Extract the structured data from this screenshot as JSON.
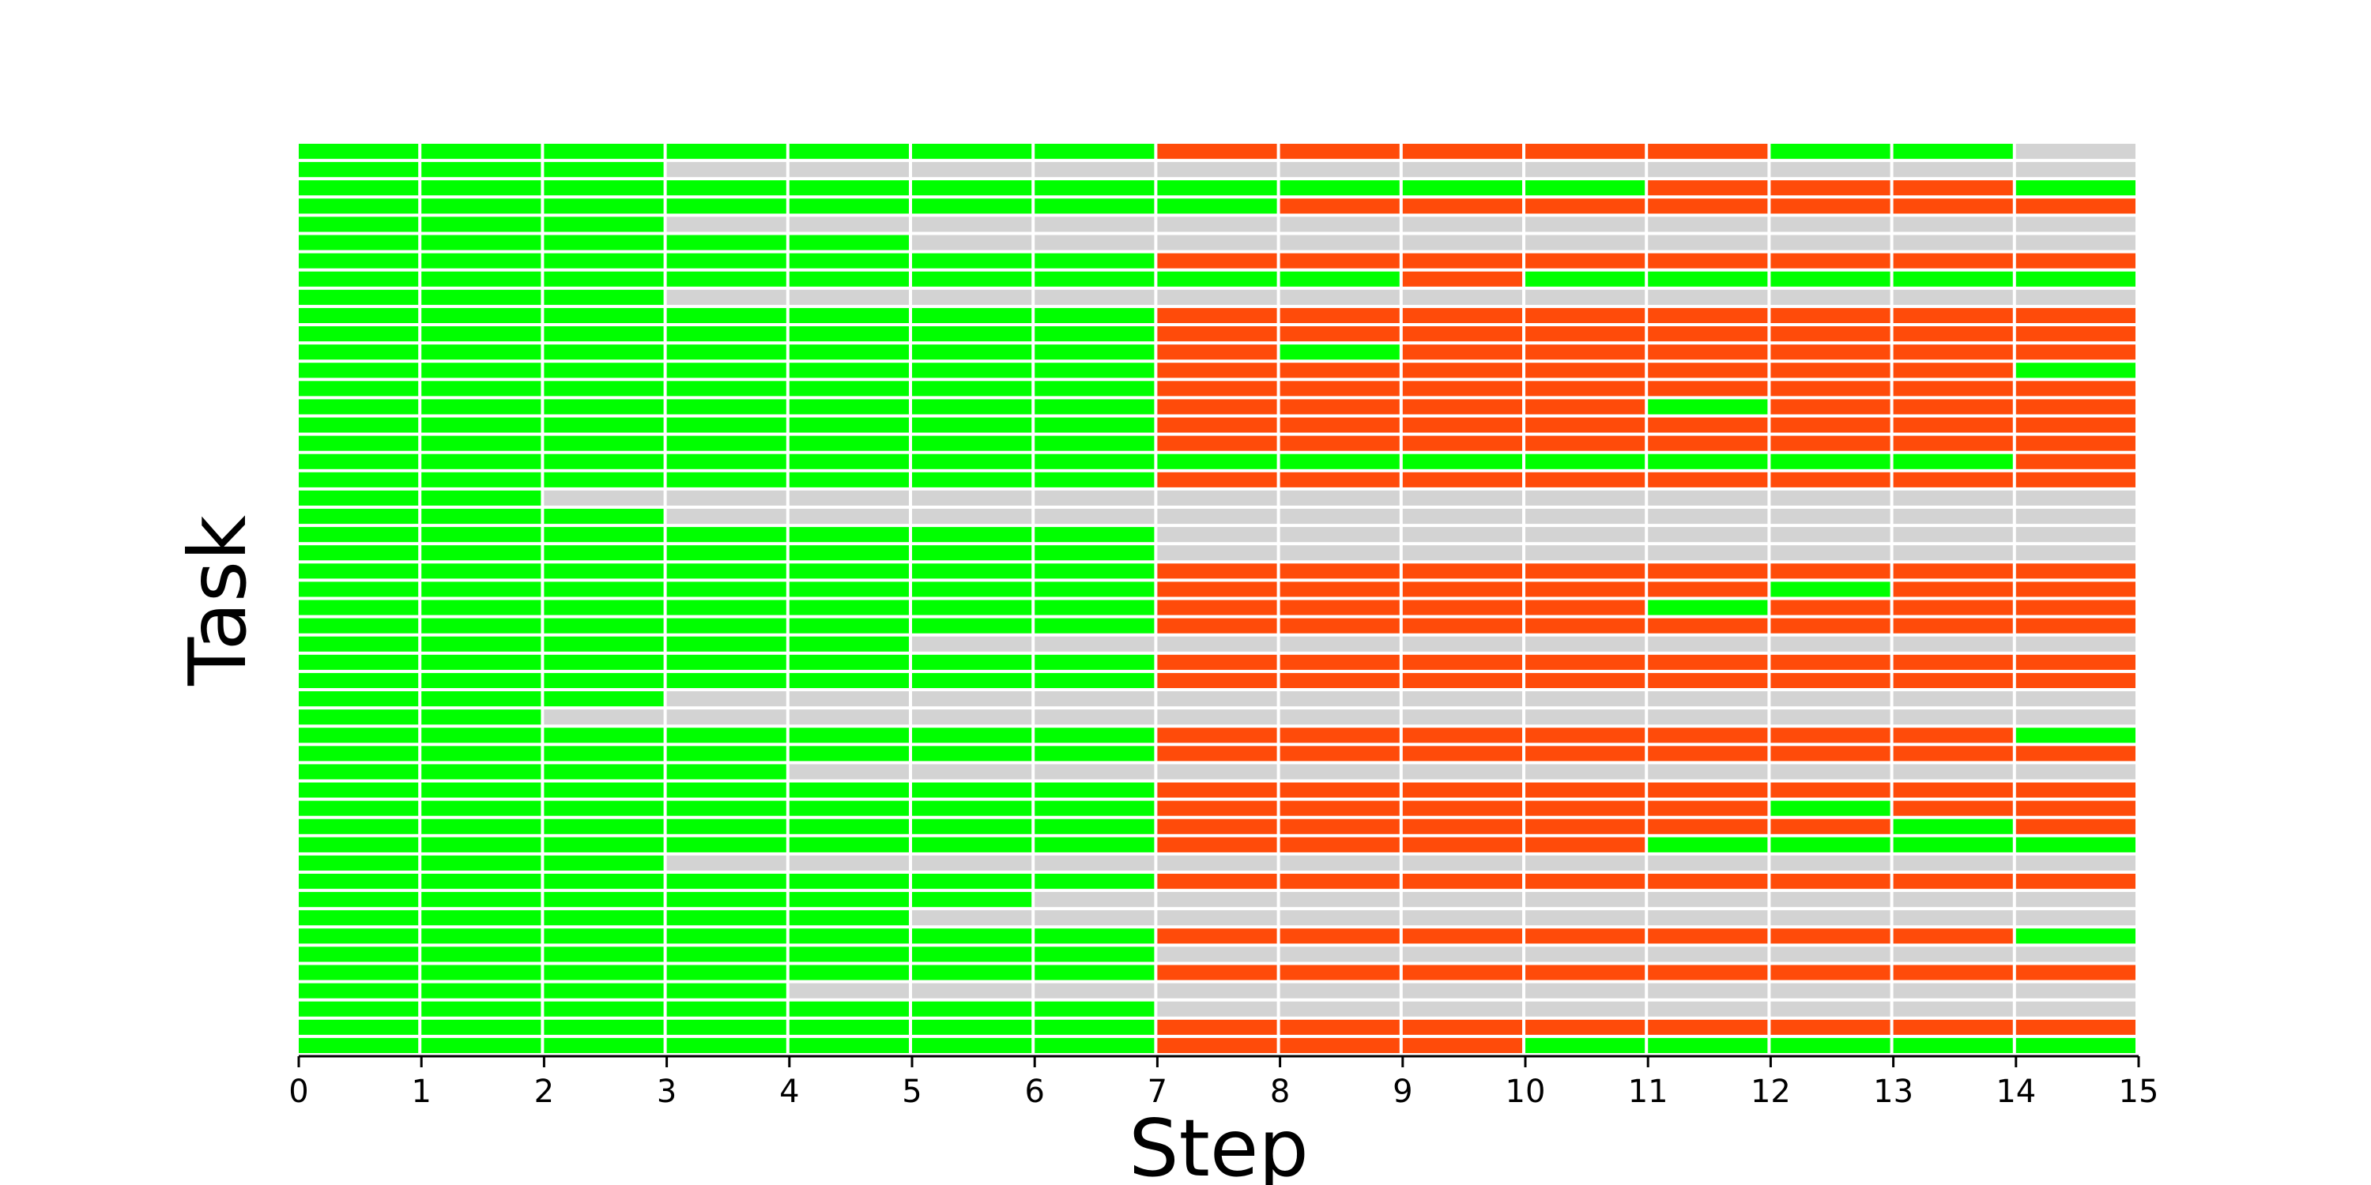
{
  "chart_data": {
    "type": "heatmap",
    "title": "",
    "xlabel": "Step",
    "ylabel": "Task",
    "x_ticks": [
      "0",
      "1",
      "2",
      "3",
      "4",
      "5",
      "6",
      "7",
      "8",
      "9",
      "10",
      "11",
      "12",
      "13",
      "14",
      "15"
    ],
    "xlim": [
      0,
      15
    ],
    "grid": true,
    "legend": "none",
    "colors": {
      "G": "#00ff00",
      "R": "#ff4b0a",
      "N": "#d3d3d3",
      "grid": "#ffffff"
    },
    "cell_legend": {
      "G": "green",
      "R": "red-orange",
      "N": "gray"
    },
    "rows": [
      "GGGGGGGRRRRRGGN",
      "GGGNNNNNNNNNNNN",
      "GGGGGGGGGGGRRRG",
      "GGGGGGGGRRRRRRR",
      "GGGNNNNNNNNNNNN",
      "GGGGGNNNNNNNNNN",
      "GGGGGGGRRRRRRRR",
      "GGGGGGGGGRGGGGG",
      "GGGNNNNNNNNNNNN",
      "GGGGGGGRRRRRRRR",
      "GGGGGGGRRRRRRRR",
      "GGGGGGGRGRRRRRR",
      "GGGGGGGRRRRRRRG",
      "GGGGGGGRRRRRRRR",
      "GGGGGGGRRRRGRRR",
      "GGGGGGGRRRRRRRR",
      "GGGGGGGRRRRRRRR",
      "GGGGGGGGGGGGGGR",
      "GGGGGGGRRRRRRRR",
      "GGNNNNNNNNNNNNN",
      "GGGNNNNNNNNNNNN",
      "GGGGGGGNNNNNNNN",
      "GGGGGGGNNNNNNNN",
      "GGGGGGGRRRRRRRR",
      "GGGGGGGRRRRRGRR",
      "GGGGGGGRRRRGRRR",
      "GGGGGGGRRRRRRRR",
      "GGGGGNNNNNNNNNN",
      "GGGGGGGRRRRRRRR",
      "GGGGGGGRRRRRRRR",
      "GGGNNNNNNNNNNNN",
      "GGNNNNNNNNNNNNN",
      "GGGGGGGRRRRRRRG",
      "GGGGGGGRRRRRRRR",
      "GGGGNNNNNNNNNNN",
      "GGGGGGGRRRRRRRR",
      "GGGGGGGRRRRRGRR",
      "GGGGGGGRRRRRRGR",
      "GGGGGGGRRRRGGGG",
      "GGGNNNNNNNNNNNN",
      "GGGGGGGRRRRRRRR",
      "GGGGGGNNNNNNNNN",
      "GGGGGNNNNNNNNNN",
      "GGGGGGGRRRRRRRG",
      "GGGGGGGNNNNNNNN",
      "GGGGGGGRRRRRRRR",
      "GGGGNNNNNNNNNNN",
      "GGGGGGGNNNNNNNN",
      "GGGGGGGRRRRRRRR",
      "GGGGGGGRRRGGGGG"
    ]
  }
}
